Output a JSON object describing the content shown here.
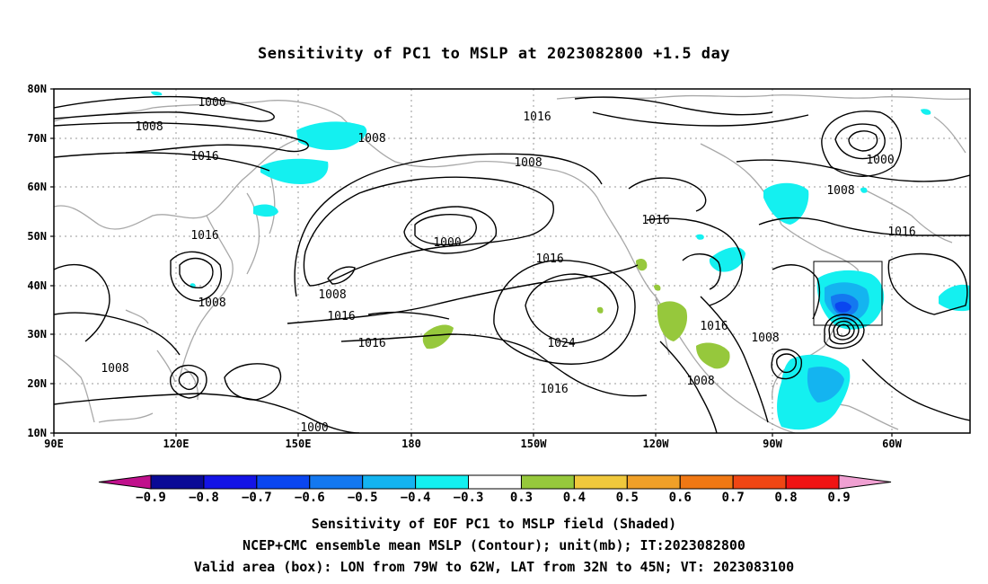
{
  "title": "Sensitivity of PC1 to MSLP at 2023082800 +1.5 day",
  "map": {
    "lat_ticks": [
      "80N",
      "70N",
      "60N",
      "50N",
      "40N",
      "30N",
      "20N",
      "10N"
    ],
    "lon_ticks": [
      "90E",
      "120E",
      "150E",
      "180",
      "150W",
      "120W",
      "90W",
      "60W"
    ],
    "contour_labels": [
      "1000",
      "1008",
      "1016",
      "1008",
      "1008",
      "1000",
      "1016",
      "1008",
      "1000",
      "1008",
      "1016",
      "1016",
      "1016",
      "1008",
      "1016",
      "1016",
      "1024",
      "1016",
      "1008",
      "1016",
      "1008",
      "1008",
      "1016"
    ],
    "valid_box": {
      "lon_west": "79W",
      "lon_east": "62W",
      "lat_south": "32N",
      "lat_north": "45N"
    }
  },
  "colorbar": {
    "labels": [
      "−0.9",
      "−0.8",
      "−0.7",
      "−0.6",
      "−0.5",
      "−0.4",
      "−0.3",
      "0.3",
      "0.4",
      "0.5",
      "0.6",
      "0.7",
      "0.8",
      "0.9"
    ],
    "colors": [
      "#c0108c",
      "#0a0a96",
      "#1414e6",
      "#0a46f0",
      "#1478f0",
      "#14b4f0",
      "#14f0f0",
      "#ffffff",
      "#96c83c",
      "#f0c83c",
      "#f0a028",
      "#f07814",
      "#f04614",
      "#f01414",
      "#f0a0d2"
    ]
  },
  "captions": {
    "line1": "Sensitivity of EOF PC1 to MSLP field (Shaded)",
    "line2": "NCEP+CMC ensemble mean MSLP (Contour); unit(mb); IT:2023082800",
    "line3": "Valid area (box): LON from 79W to 62W, LAT from 32N to 45N; VT: 2023083100"
  }
}
